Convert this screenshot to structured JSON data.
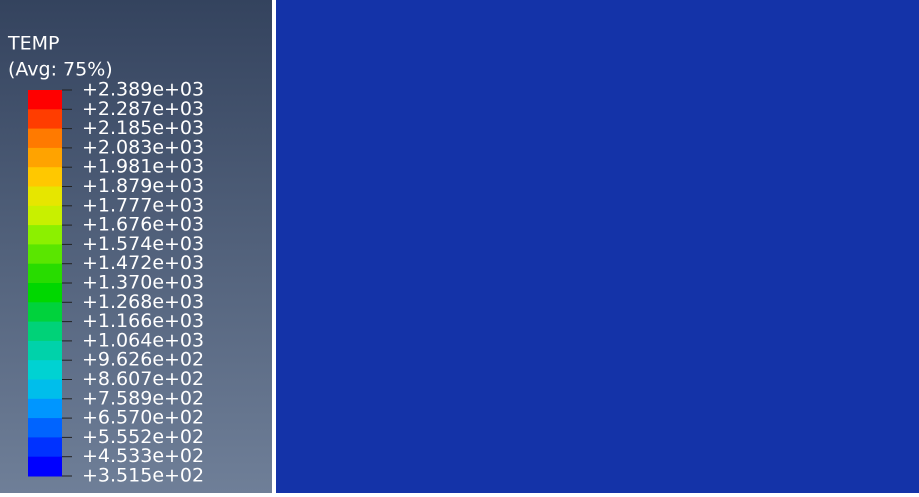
{
  "legend": {
    "title": "TEMP",
    "subtitle": "(Avg: 75%)",
    "labels": [
      "+2.389e+03",
      "+2.287e+03",
      "+2.185e+03",
      "+2.083e+03",
      "+1.981e+03",
      "+1.879e+03",
      "+1.777e+03",
      "+1.676e+03",
      "+1.574e+03",
      "+1.472e+03",
      "+1.370e+03",
      "+1.268e+03",
      "+1.166e+03",
      "+1.064e+03",
      "+9.626e+02",
      "+8.607e+02",
      "+7.589e+02",
      "+6.570e+02",
      "+5.552e+02",
      "+4.533e+02",
      "+3.515e+02"
    ],
    "colors": [
      "#ff0000",
      "#ff3d00",
      "#ff7a00",
      "#ffa300",
      "#ffc800",
      "#e6e600",
      "#c8f000",
      "#8cf000",
      "#5ae600",
      "#28dc00",
      "#00d700",
      "#00d23c",
      "#00d278",
      "#00d2aa",
      "#00d2d2",
      "#00beeb",
      "#0096ff",
      "#0064ff",
      "#0032ff",
      "#0000ff"
    ]
  }
}
